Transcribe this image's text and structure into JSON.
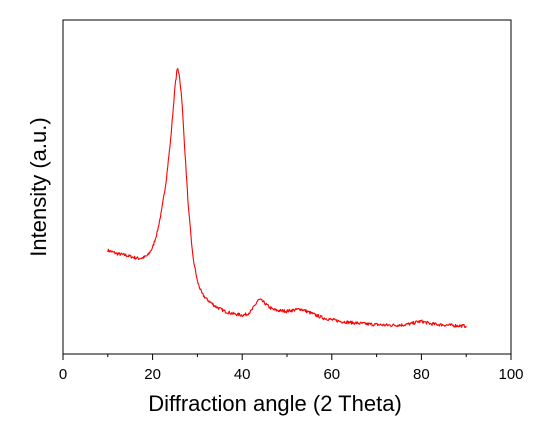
{
  "chart_data": {
    "type": "line",
    "title": "",
    "xlabel": "Diffraction angle (2 Theta)",
    "ylabel": "Intensity (a.u.)",
    "xlim": [
      0,
      100
    ],
    "ylim": [
      0,
      1
    ],
    "xticks": [
      "0",
      "20",
      "40",
      "60",
      "80",
      "100"
    ],
    "yticks": [],
    "grid": false,
    "legend": "none",
    "series": [
      {
        "color": "#ff0000",
        "x": [
          10,
          12,
          14,
          16,
          17,
          18,
          19,
          20,
          21,
          22,
          23,
          24,
          24.5,
          25,
          25.5,
          26,
          26.5,
          27,
          28,
          29,
          30,
          31,
          32,
          34,
          36,
          38,
          40,
          41,
          42,
          43,
          43.5,
          44,
          45,
          46,
          47,
          48,
          50,
          52,
          53,
          54,
          56,
          58,
          60,
          62,
          64,
          66,
          68,
          70,
          72,
          74,
          76,
          78,
          79,
          80,
          81,
          82,
          84,
          86,
          88,
          90
        ],
        "y": [
          0.295,
          0.283,
          0.277,
          0.268,
          0.265,
          0.268,
          0.278,
          0.305,
          0.36,
          0.44,
          0.55,
          0.7,
          0.8,
          0.9,
          0.97,
          0.94,
          0.86,
          0.72,
          0.45,
          0.27,
          0.18,
          0.135,
          0.115,
          0.088,
          0.07,
          0.06,
          0.055,
          0.058,
          0.07,
          0.095,
          0.11,
          0.112,
          0.1,
          0.085,
          0.075,
          0.072,
          0.07,
          0.075,
          0.078,
          0.072,
          0.058,
          0.045,
          0.038,
          0.032,
          0.028,
          0.025,
          0.022,
          0.02,
          0.018,
          0.018,
          0.019,
          0.024,
          0.03,
          0.032,
          0.028,
          0.023,
          0.02,
          0.018,
          0.016,
          0.015
        ]
      }
    ]
  }
}
